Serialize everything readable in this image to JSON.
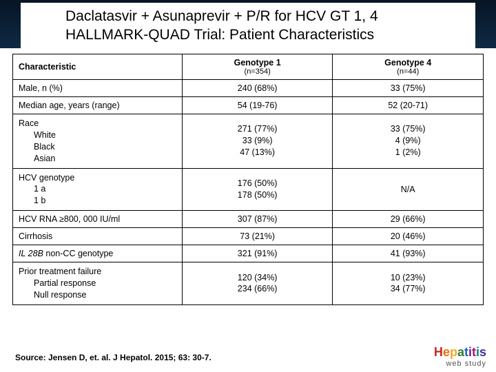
{
  "title": {
    "line1": "Daclatasvir + Asunaprevir + P/R for HCV GT 1, 4",
    "line2": "HALLMARK-QUAD Trial: Patient Characteristics"
  },
  "table": {
    "header": {
      "char": "Characteristic",
      "gt1": "Genotype 1",
      "gt1_n": "(n=354)",
      "gt4": "Genotype 4",
      "gt4_n": "(n=44)"
    },
    "rows": [
      {
        "label": "Male, n (%)",
        "gt1": "240 (68%)",
        "gt4": "33 (75%)"
      },
      {
        "label": "Median age, years (range)",
        "gt1": "54 (19-76)",
        "gt4": "52 (20-71)"
      },
      {
        "label_main": "Race",
        "sub": [
          "White",
          "Black",
          "Asian"
        ],
        "gt1_lines": [
          "271 (77%)",
          "33 (9%)",
          "47 (13%)"
        ],
        "gt4_lines": [
          "33 (75%)",
          "4 (9%)",
          "1 (2%)"
        ]
      },
      {
        "label_main": "HCV genotype",
        "sub": [
          "1 a",
          "1 b"
        ],
        "gt1_lines": [
          "176 (50%)",
          "178 (50%)"
        ],
        "gt4_single": "N/A"
      },
      {
        "label": "HCV RNA ≥800, 000 IU/ml",
        "gt1": "307 (87%)",
        "gt4": "29 (66%)"
      },
      {
        "label": "Cirrhosis",
        "gt1": "73 (21%)",
        "gt4": "20 (46%)"
      },
      {
        "label_italic": "IL 28B",
        "label_rest": " non-CC genotype",
        "gt1": "321 (91%)",
        "gt4": "41 (93%)"
      },
      {
        "label_main": "Prior treatment failure",
        "sub": [
          "Partial response",
          "Null response"
        ],
        "gt1_lines": [
          "120 (34%)",
          "234 (66%)"
        ],
        "gt4_lines": [
          "10 (23%)",
          "34 (77%)"
        ]
      }
    ]
  },
  "source": "Source: Jensen D, et. al. J Hepatol. 2015; 63: 30-7.",
  "logo": {
    "word": "Hepatitis",
    "sub": "web study"
  },
  "colors": {
    "dark_strip_top": "#071525",
    "dark_strip_bottom": "#0f2a45",
    "border": "#000000",
    "background": "#ffffff"
  }
}
